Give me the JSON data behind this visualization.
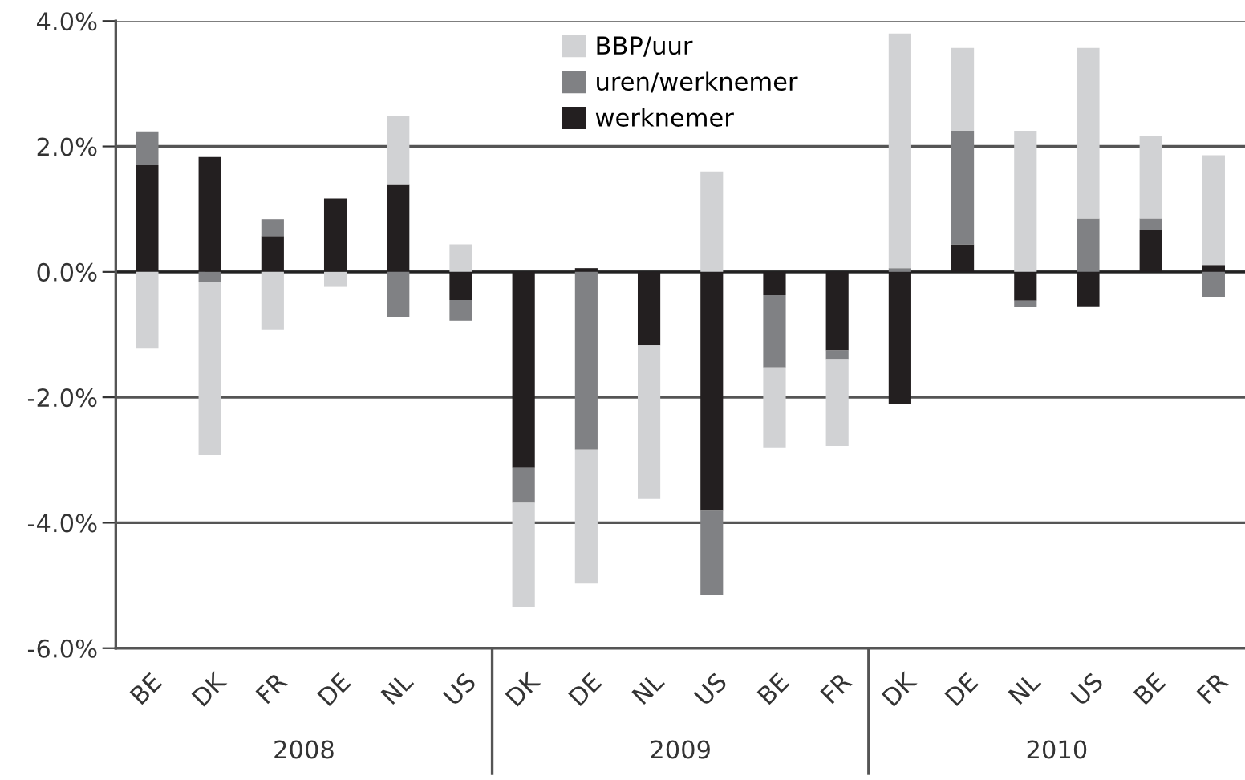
{
  "chart_data": {
    "type": "bar",
    "stacked": true,
    "categories": [
      "BE",
      "DK",
      "FR",
      "DE",
      "NL",
      "US",
      "DK",
      "DE",
      "NL",
      "US",
      "BE",
      "FR",
      "DK",
      "DE",
      "NL",
      "US",
      "BE",
      "FR"
    ],
    "series": [
      {
        "name": "werknemer",
        "color": "#231f20",
        "values": [
          1.71,
          1.83,
          0.57,
          1.17,
          1.4,
          -0.45,
          -3.12,
          0.06,
          -1.17,
          -3.81,
          -0.37,
          -1.25,
          -2.1,
          0.44,
          -0.46,
          -0.55,
          0.67,
          0.11
        ]
      },
      {
        "name": "uren/werknemer",
        "color": "#808184",
        "values": [
          0.53,
          -0.16,
          0.27,
          0,
          -0.72,
          -0.33,
          -0.56,
          -2.84,
          0,
          -1.35,
          -1.15,
          -0.14,
          0.06,
          1.81,
          -0.1,
          0.85,
          0.18,
          -0.4
        ]
      },
      {
        "name": "BBP/uur",
        "color": "#d1d2d4",
        "values": [
          -1.22,
          -2.76,
          -0.92,
          -0.24,
          1.09,
          0.44,
          -1.66,
          -2.13,
          -2.45,
          1.6,
          -1.28,
          -1.39,
          3.74,
          1.32,
          2.25,
          2.72,
          1.32,
          1.75
        ]
      }
    ],
    "ylim": [
      -6,
      4
    ],
    "yticks": [
      {
        "value": -6,
        "label": "-6.0%"
      },
      {
        "value": -4,
        "label": "-4.0%"
      },
      {
        "value": -2,
        "label": "-2.0%"
      },
      {
        "value": 0,
        "label": "0.0%"
      },
      {
        "value": 2,
        "label": "2.0%"
      },
      {
        "value": 4,
        "label": "4.0%"
      }
    ],
    "grid": "y",
    "legend": "top",
    "annotations": [
      "2008",
      "2009",
      "2010"
    ]
  }
}
